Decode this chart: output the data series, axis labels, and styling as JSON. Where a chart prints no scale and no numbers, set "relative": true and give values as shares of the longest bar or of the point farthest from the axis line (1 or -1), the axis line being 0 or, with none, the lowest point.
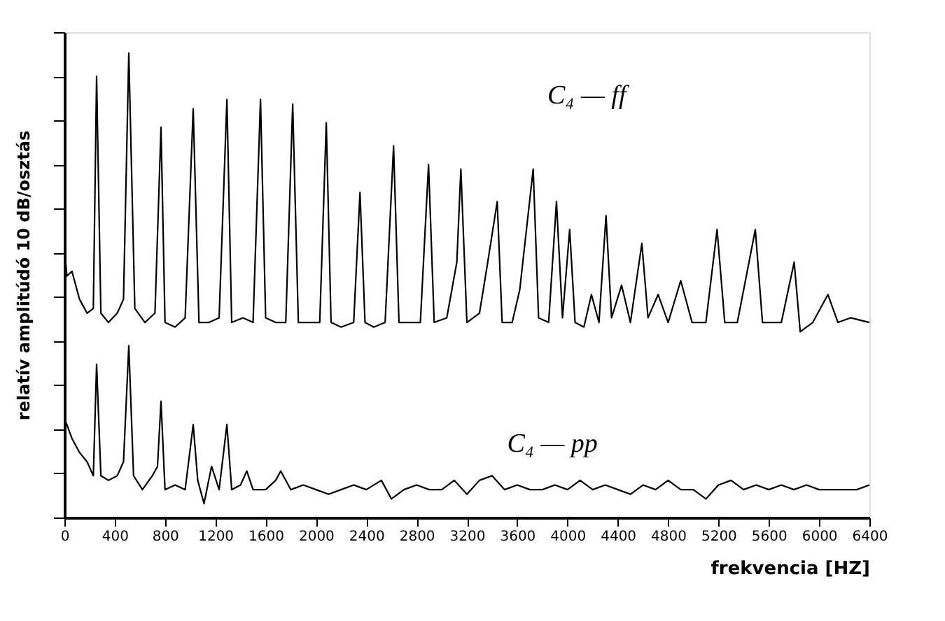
{
  "chart_data": {
    "type": "line",
    "relative": true,
    "xlabel": "frekvencia [HZ]",
    "ylabel": "relatív amplitúdó 10 dB/osztás",
    "xlim": [
      0,
      6400
    ],
    "xticks": [
      0,
      400,
      800,
      1200,
      1600,
      2000,
      2400,
      2800,
      3200,
      3600,
      4000,
      4400,
      4800,
      5200,
      5600,
      6000,
      6400
    ],
    "grid": false,
    "legend": false,
    "marker": "none",
    "line_style": "solid",
    "series": [
      {
        "name": "C₄ — ff",
        "color": "#000000",
        "x": [
          0,
          20,
          60,
          120,
          180,
          230,
          256,
          290,
          350,
          420,
          470,
          512,
          560,
          640,
          720,
          768,
          800,
          880,
          960,
          1024,
          1070,
          1150,
          1230,
          1292,
          1330,
          1420,
          1500,
          1559,
          1600,
          1680,
          1760,
          1815,
          1860,
          1950,
          2030,
          2082,
          2120,
          2200,
          2300,
          2350,
          2390,
          2460,
          2550,
          2617,
          2660,
          2750,
          2830,
          2895,
          2940,
          3040,
          3120,
          3152,
          3200,
          3300,
          3360,
          3441,
          3480,
          3560,
          3620,
          3727,
          3770,
          3850,
          3912,
          3960,
          4017,
          4060,
          4130,
          4190,
          4250,
          4306,
          4350,
          4430,
          4500,
          4591,
          4640,
          4720,
          4800,
          4900,
          4990,
          5100,
          5189,
          5250,
          5350,
          5493,
          5550,
          5650,
          5700,
          5802,
          5850,
          5950,
          6070,
          6150,
          6250,
          6400
        ],
        "values": [
          0.58,
          0.52,
          0.53,
          0.47,
          0.44,
          0.45,
          0.95,
          0.44,
          0.42,
          0.44,
          0.47,
          1.0,
          0.45,
          0.42,
          0.44,
          0.84,
          0.42,
          0.41,
          0.43,
          0.88,
          0.42,
          0.42,
          0.43,
          0.9,
          0.42,
          0.43,
          0.42,
          0.9,
          0.43,
          0.42,
          0.42,
          0.89,
          0.42,
          0.42,
          0.42,
          0.85,
          0.42,
          0.41,
          0.42,
          0.7,
          0.42,
          0.41,
          0.42,
          0.8,
          0.42,
          0.42,
          0.42,
          0.76,
          0.42,
          0.43,
          0.55,
          0.75,
          0.42,
          0.44,
          0.54,
          0.68,
          0.42,
          0.42,
          0.49,
          0.75,
          0.43,
          0.42,
          0.68,
          0.43,
          0.62,
          0.42,
          0.41,
          0.48,
          0.42,
          0.65,
          0.43,
          0.5,
          0.42,
          0.59,
          0.43,
          0.48,
          0.42,
          0.51,
          0.42,
          0.42,
          0.62,
          0.42,
          0.42,
          0.62,
          0.42,
          0.42,
          0.42,
          0.55,
          0.4,
          0.42,
          0.48,
          0.42,
          0.43,
          0.42
        ]
      },
      {
        "name": "C₄ — pp",
        "color": "#000000",
        "x": [
          0,
          20,
          60,
          120,
          180,
          230,
          256,
          290,
          350,
          420,
          470,
          512,
          550,
          620,
          700,
          740,
          768,
          800,
          880,
          960,
          1024,
          1060,
          1110,
          1170,
          1230,
          1292,
          1330,
          1400,
          1450,
          1500,
          1600,
          1680,
          1720,
          1800,
          1900,
          2000,
          2100,
          2200,
          2300,
          2400,
          2520,
          2600,
          2700,
          2800,
          2900,
          3000,
          3100,
          3200,
          3300,
          3400,
          3500,
          3600,
          3700,
          3800,
          3900,
          4000,
          4100,
          4200,
          4300,
          4400,
          4500,
          4600,
          4700,
          4800,
          4900,
          5000,
          5100,
          5200,
          5300,
          5400,
          5500,
          5600,
          5700,
          5800,
          5900,
          6000,
          6100,
          6200,
          6300,
          6400
        ],
        "values": [
          0.21,
          0.2,
          0.17,
          0.14,
          0.12,
          0.09,
          0.33,
          0.09,
          0.08,
          0.09,
          0.12,
          0.37,
          0.09,
          0.06,
          0.09,
          0.11,
          0.25,
          0.06,
          0.07,
          0.06,
          0.2,
          0.08,
          0.03,
          0.11,
          0.06,
          0.2,
          0.06,
          0.07,
          0.1,
          0.06,
          0.06,
          0.08,
          0.1,
          0.06,
          0.07,
          0.06,
          0.05,
          0.06,
          0.07,
          0.06,
          0.08,
          0.04,
          0.06,
          0.07,
          0.06,
          0.06,
          0.08,
          0.05,
          0.08,
          0.09,
          0.06,
          0.07,
          0.06,
          0.06,
          0.07,
          0.06,
          0.08,
          0.06,
          0.07,
          0.06,
          0.05,
          0.07,
          0.06,
          0.08,
          0.06,
          0.06,
          0.04,
          0.07,
          0.08,
          0.06,
          0.07,
          0.06,
          0.07,
          0.06,
          0.07,
          0.06,
          0.06,
          0.06,
          0.06,
          0.07
        ]
      }
    ]
  }
}
